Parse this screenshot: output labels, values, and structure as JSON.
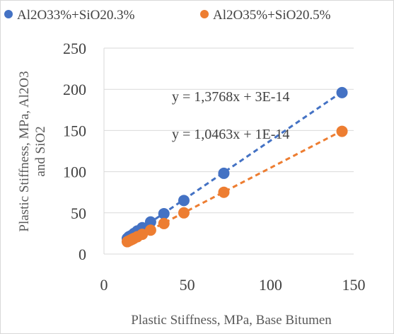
{
  "chart_data": {
    "type": "scatter",
    "xlabel": "Plastic Stiffness, MPa, Base Bitumen",
    "ylabel": "Plastic Stiffness, MPa, Al2O3 and SiO2",
    "xlim": [
      0,
      150
    ],
    "ylim": [
      0,
      250
    ],
    "x_ticks": [
      "0",
      "50",
      "100",
      "150"
    ],
    "y_ticks": [
      "0",
      "50",
      "100",
      "150",
      "200",
      "250"
    ],
    "grid": "horizontal",
    "legend_position": "top",
    "series": [
      {
        "name": "Al2O33%+SiO20.3%",
        "color": "#4472C4",
        "points": [
          [
            14,
            19
          ],
          [
            15,
            21
          ],
          [
            16,
            22
          ],
          [
            17,
            23
          ],
          [
            18,
            25
          ],
          [
            20,
            28
          ],
          [
            23,
            32
          ],
          [
            28,
            39
          ],
          [
            36,
            49
          ],
          [
            48,
            65
          ],
          [
            72,
            98
          ],
          [
            143,
            196
          ]
        ],
        "trendline": {
          "slope": 1.3768,
          "intercept": 0,
          "equation": "y = 1,3768x + 3E-14"
        }
      },
      {
        "name": "Al2O35%+SiO20.5%",
        "color": "#ED7D31",
        "points": [
          [
            14,
            15
          ],
          [
            15,
            16
          ],
          [
            16,
            17
          ],
          [
            17,
            18
          ],
          [
            18,
            19
          ],
          [
            20,
            21
          ],
          [
            23,
            24
          ],
          [
            28,
            29
          ],
          [
            36,
            37
          ],
          [
            48,
            50
          ],
          [
            72,
            75
          ],
          [
            143,
            149
          ]
        ],
        "trendline": {
          "slope": 1.0463,
          "intercept": 0,
          "equation": "y = 1,0463x + 1E-14"
        }
      }
    ]
  }
}
